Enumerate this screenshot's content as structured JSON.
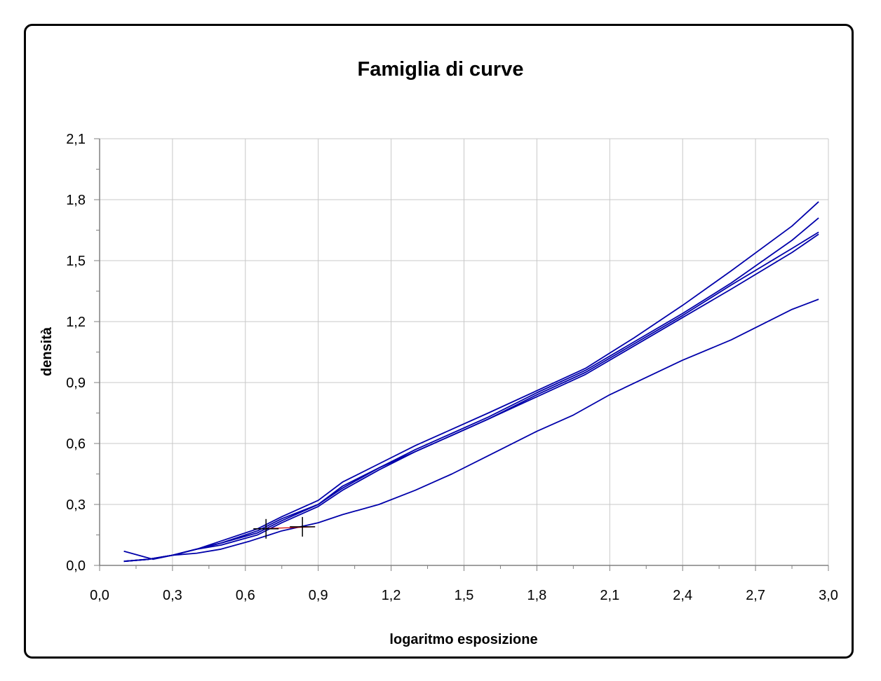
{
  "chart_data": {
    "type": "line",
    "title": "Famiglia di curve",
    "xlabel": "logaritmo esposizione",
    "ylabel": "densità",
    "xlim": [
      0,
      3
    ],
    "ylim": [
      0,
      2.1
    ],
    "x_ticks": [
      "0,0",
      "0,3",
      "0,6",
      "0,9",
      "1,2",
      "1,5",
      "1,8",
      "2,1",
      "2,4",
      "2,7",
      "3,0"
    ],
    "y_ticks": [
      "0,0",
      "0,3",
      "0,6",
      "0,9",
      "1,2",
      "1,5",
      "1,8",
      "2,1"
    ],
    "grid": true,
    "legend": "none",
    "line_color": "#0000aa",
    "series": [
      {
        "points": [
          [
            0.1,
            0.02
          ],
          [
            0.2,
            0.03
          ],
          [
            0.3,
            0.05
          ],
          [
            0.4,
            0.08
          ],
          [
            0.5,
            0.12
          ],
          [
            0.65,
            0.18
          ],
          [
            0.75,
            0.24
          ],
          [
            0.9,
            0.32
          ],
          [
            1.0,
            0.41
          ],
          [
            1.15,
            0.5
          ],
          [
            1.3,
            0.59
          ],
          [
            1.45,
            0.67
          ],
          [
            1.6,
            0.75
          ],
          [
            1.8,
            0.86
          ],
          [
            2.0,
            0.97
          ],
          [
            2.2,
            1.12
          ],
          [
            2.4,
            1.28
          ],
          [
            2.6,
            1.45
          ],
          [
            2.85,
            1.67
          ],
          [
            2.96,
            1.79
          ]
        ]
      },
      {
        "points": [
          [
            0.1,
            0.02
          ],
          [
            0.2,
            0.03
          ],
          [
            0.3,
            0.05
          ],
          [
            0.4,
            0.08
          ],
          [
            0.5,
            0.11
          ],
          [
            0.65,
            0.17
          ],
          [
            0.75,
            0.23
          ],
          [
            0.9,
            0.3
          ],
          [
            1.0,
            0.39
          ],
          [
            1.15,
            0.48
          ],
          [
            1.3,
            0.57
          ],
          [
            1.45,
            0.65
          ],
          [
            1.6,
            0.73
          ],
          [
            1.8,
            0.85
          ],
          [
            2.0,
            0.96
          ],
          [
            2.2,
            1.1
          ],
          [
            2.4,
            1.24
          ],
          [
            2.6,
            1.39
          ],
          [
            2.85,
            1.6
          ],
          [
            2.96,
            1.71
          ]
        ]
      },
      {
        "points": [
          [
            0.1,
            0.02
          ],
          [
            0.2,
            0.03
          ],
          [
            0.3,
            0.05
          ],
          [
            0.4,
            0.08
          ],
          [
            0.5,
            0.11
          ],
          [
            0.65,
            0.16
          ],
          [
            0.75,
            0.22
          ],
          [
            0.9,
            0.3
          ],
          [
            1.0,
            0.38
          ],
          [
            1.15,
            0.48
          ],
          [
            1.3,
            0.56
          ],
          [
            1.45,
            0.64
          ],
          [
            1.6,
            0.72
          ],
          [
            1.8,
            0.84
          ],
          [
            2.0,
            0.95
          ],
          [
            2.2,
            1.09
          ],
          [
            2.4,
            1.23
          ],
          [
            2.6,
            1.38
          ],
          [
            2.85,
            1.56
          ],
          [
            2.96,
            1.64
          ]
        ]
      },
      {
        "points": [
          [
            0.1,
            0.02
          ],
          [
            0.2,
            0.03
          ],
          [
            0.3,
            0.05
          ],
          [
            0.4,
            0.08
          ],
          [
            0.5,
            0.1
          ],
          [
            0.65,
            0.15
          ],
          [
            0.75,
            0.21
          ],
          [
            0.9,
            0.29
          ],
          [
            1.0,
            0.37
          ],
          [
            1.15,
            0.47
          ],
          [
            1.3,
            0.56
          ],
          [
            1.45,
            0.64
          ],
          [
            1.6,
            0.72
          ],
          [
            1.8,
            0.83
          ],
          [
            2.0,
            0.94
          ],
          [
            2.2,
            1.08
          ],
          [
            2.4,
            1.22
          ],
          [
            2.6,
            1.36
          ],
          [
            2.85,
            1.54
          ],
          [
            2.96,
            1.63
          ]
        ]
      },
      {
        "points": [
          [
            0.1,
            0.07
          ],
          [
            0.22,
            0.03
          ],
          [
            0.3,
            0.05
          ],
          [
            0.4,
            0.06
          ],
          [
            0.5,
            0.08
          ],
          [
            0.62,
            0.12
          ],
          [
            0.75,
            0.17
          ],
          [
            0.9,
            0.21
          ],
          [
            1.0,
            0.25
          ],
          [
            1.15,
            0.3
          ],
          [
            1.3,
            0.37
          ],
          [
            1.45,
            0.45
          ],
          [
            1.6,
            0.54
          ],
          [
            1.8,
            0.66
          ],
          [
            1.95,
            0.74
          ],
          [
            2.1,
            0.84
          ],
          [
            2.4,
            1.01
          ],
          [
            2.6,
            1.11
          ],
          [
            2.85,
            1.26
          ],
          [
            2.96,
            1.31
          ]
        ]
      }
    ],
    "markers": [
      {
        "x": 0.685,
        "y": 0.18
      },
      {
        "x": 0.835,
        "y": 0.19
      }
    ],
    "marker_link_color": "#cc0000"
  }
}
